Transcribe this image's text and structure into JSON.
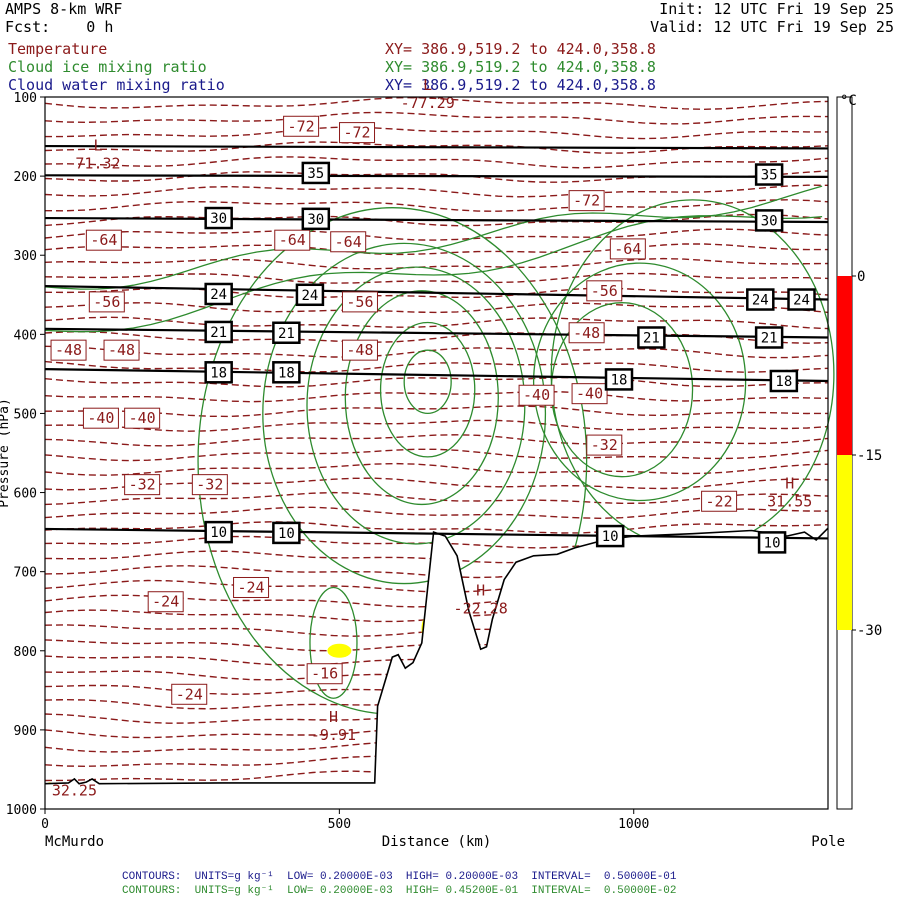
{
  "header": {
    "model": "AMPS 8-km WRF",
    "forecast": "Fcst:    0 h",
    "init": "Init: 12 UTC Fri 19 Sep 25",
    "valid": "Valid: 12 UTC Fri 19 Sep 25",
    "fields": [
      {
        "name": "Temperature",
        "xy": "XY= 386.9,519.2 to 424.0,358.8",
        "color": "#8b1a1a"
      },
      {
        "name": "Cloud ice mixing ratio",
        "xy": "XY= 386.9,519.2 to 424.0,358.8",
        "color": "#2e8b2e"
      },
      {
        "name": "Cloud water mixing ratio",
        "xy": "XY= 386.9,519.2 to 424.0,358.8",
        "color": "#1a1a8b"
      }
    ]
  },
  "footer": {
    "line1": "CONTOURS:  UNITS=g kg⁻¹  LOW= 0.20000E-03  HIGH= 0.20000E-03  INTERVAL=  0.50000E-01",
    "line2": "CONTOURS:  UNITS=g kg⁻¹  LOW= 0.20000E-03  HIGH= 0.45200E-01  INTERVAL=  0.50000E-02",
    "line1_color": "#1a1a8b",
    "line2_color": "#2e8b2e"
  },
  "chart_data": {
    "type": "contour-cross-section",
    "xlabel": "Distance (km)",
    "x_ticks": [
      0,
      500,
      1000
    ],
    "xlim": [
      0,
      1330
    ],
    "x_endpoints": {
      "left": "McMurdo",
      "right": "Pole"
    },
    "ylabel": "Pressure (hPa)",
    "y_ticks": [
      100,
      200,
      300,
      400,
      500,
      600,
      700,
      800,
      900,
      1000
    ],
    "ylim": [
      100,
      1000
    ],
    "colorbar": {
      "unit": "°C",
      "labels": [
        "0",
        "-15",
        "-30"
      ],
      "bands": [
        {
          "from": 0,
          "to": -15,
          "color": "#ff0000"
        },
        {
          "from": -15,
          "to": -30,
          "color": "#ffff00"
        }
      ]
    },
    "temperature_labels": [
      {
        "t": "-72",
        "x": 435,
        "p": 137
      },
      {
        "t": "-72",
        "x": 530,
        "p": 145
      },
      {
        "t": "-72",
        "x": 920,
        "p": 231
      },
      {
        "t": "-64",
        "x": 100,
        "p": 281
      },
      {
        "t": "-64",
        "x": 420,
        "p": 281
      },
      {
        "t": "-64",
        "x": 515,
        "p": 283
      },
      {
        "t": "-64",
        "x": 990,
        "p": 292
      },
      {
        "t": "-56",
        "x": 105,
        "p": 359
      },
      {
        "t": "-56",
        "x": 535,
        "p": 359
      },
      {
        "t": "-56",
        "x": 950,
        "p": 345
      },
      {
        "t": "-48",
        "x": 40,
        "p": 420
      },
      {
        "t": "-48",
        "x": 130,
        "p": 420
      },
      {
        "t": "-48",
        "x": 535,
        "p": 420
      },
      {
        "t": "-48",
        "x": 920,
        "p": 398
      },
      {
        "t": "-40",
        "x": 95,
        "p": 506
      },
      {
        "t": "-40",
        "x": 165,
        "p": 506
      },
      {
        "t": "-40",
        "x": 835,
        "p": 477
      },
      {
        "t": "-40",
        "x": 925,
        "p": 475
      },
      {
        "t": "-32",
        "x": 165,
        "p": 590
      },
      {
        "t": "-32",
        "x": 280,
        "p": 590
      },
      {
        "t": "-32",
        "x": 950,
        "p": 540
      },
      {
        "t": "-22",
        "x": 1145,
        "p": 611
      },
      {
        "t": "-24",
        "x": 205,
        "p": 738
      },
      {
        "t": "-24",
        "x": 350,
        "p": 720
      },
      {
        "t": "-24",
        "x": 245,
        "p": 855
      },
      {
        "t": "-16",
        "x": 475,
        "p": 829
      }
    ],
    "extrema": [
      {
        "type": "L",
        "value": "71.32",
        "x": 90,
        "p": 178
      },
      {
        "type": "L",
        "value": "-77.29",
        "x": 650,
        "p": 101
      },
      {
        "type": "H",
        "value": "31.55",
        "x": 1265,
        "p": 605
      },
      {
        "type": "H",
        "value": "-22.28",
        "x": 740,
        "p": 740
      },
      {
        "type": "H",
        "value": "-9.91",
        "x": 490,
        "p": 900
      },
      {
        "type": "",
        "value": "32.25",
        "x": 50,
        "p": 970
      }
    ],
    "isotach_labels": [
      {
        "v": "35",
        "x": 460,
        "p": 196
      },
      {
        "v": "35",
        "x": 1230,
        "p": 198
      },
      {
        "v": "30",
        "x": 295,
        "p": 253
      },
      {
        "v": "30",
        "x": 460,
        "p": 254
      },
      {
        "v": "30",
        "x": 1230,
        "p": 256
      },
      {
        "v": "24",
        "x": 295,
        "p": 349
      },
      {
        "v": "24",
        "x": 450,
        "p": 350
      },
      {
        "v": "24",
        "x": 1215,
        "p": 356
      },
      {
        "v": "24",
        "x": 1285,
        "p": 356
      },
      {
        "v": "21",
        "x": 295,
        "p": 397
      },
      {
        "v": "21",
        "x": 410,
        "p": 398
      },
      {
        "v": "21",
        "x": 1030,
        "p": 404
      },
      {
        "v": "21",
        "x": 1230,
        "p": 404
      },
      {
        "v": "18",
        "x": 295,
        "p": 448
      },
      {
        "v": "18",
        "x": 410,
        "p": 448
      },
      {
        "v": "18",
        "x": 975,
        "p": 457
      },
      {
        "v": "18",
        "x": 1255,
        "p": 459
      },
      {
        "v": "10",
        "x": 295,
        "p": 650
      },
      {
        "v": "10",
        "x": 410,
        "p": 651
      },
      {
        "v": "10",
        "x": 960,
        "p": 655
      },
      {
        "v": "10",
        "x": 1235,
        "p": 663
      }
    ],
    "isotach_lines": [
      [
        [
          0,
          162
        ],
        [
          1330,
          165
        ]
      ],
      [
        [
          0,
          199
        ],
        [
          1330,
          201
        ]
      ],
      [
        [
          0,
          253
        ],
        [
          1330,
          258
        ]
      ],
      [
        [
          0,
          339
        ],
        [
          1330,
          356
        ]
      ],
      [
        [
          0,
          393
        ],
        [
          1330,
          404
        ]
      ],
      [
        [
          0,
          444
        ],
        [
          1330,
          459
        ]
      ],
      [
        [
          0,
          646
        ],
        [
          1330,
          658
        ]
      ]
    ],
    "terrain": [
      [
        0,
        968
      ],
      [
        40,
        967
      ],
      [
        50,
        962
      ],
      [
        58,
        968
      ],
      [
        70,
        966
      ],
      [
        80,
        962
      ],
      [
        92,
        968
      ],
      [
        300,
        967
      ],
      [
        420,
        967
      ],
      [
        560,
        967
      ],
      [
        565,
        870
      ],
      [
        590,
        808
      ],
      [
        600,
        805
      ],
      [
        612,
        822
      ],
      [
        625,
        815
      ],
      [
        640,
        790
      ],
      [
        660,
        650
      ],
      [
        680,
        655
      ],
      [
        700,
        680
      ],
      [
        720,
        750
      ],
      [
        740,
        798
      ],
      [
        750,
        795
      ],
      [
        760,
        760
      ],
      [
        780,
        710
      ],
      [
        800,
        688
      ],
      [
        830,
        680
      ],
      [
        870,
        678
      ],
      [
        900,
        670
      ],
      [
        950,
        660
      ],
      [
        1000,
        655
      ],
      [
        1100,
        652
      ],
      [
        1200,
        648
      ],
      [
        1260,
        655
      ],
      [
        1290,
        650
      ],
      [
        1310,
        660
      ],
      [
        1330,
        645
      ]
    ]
  }
}
